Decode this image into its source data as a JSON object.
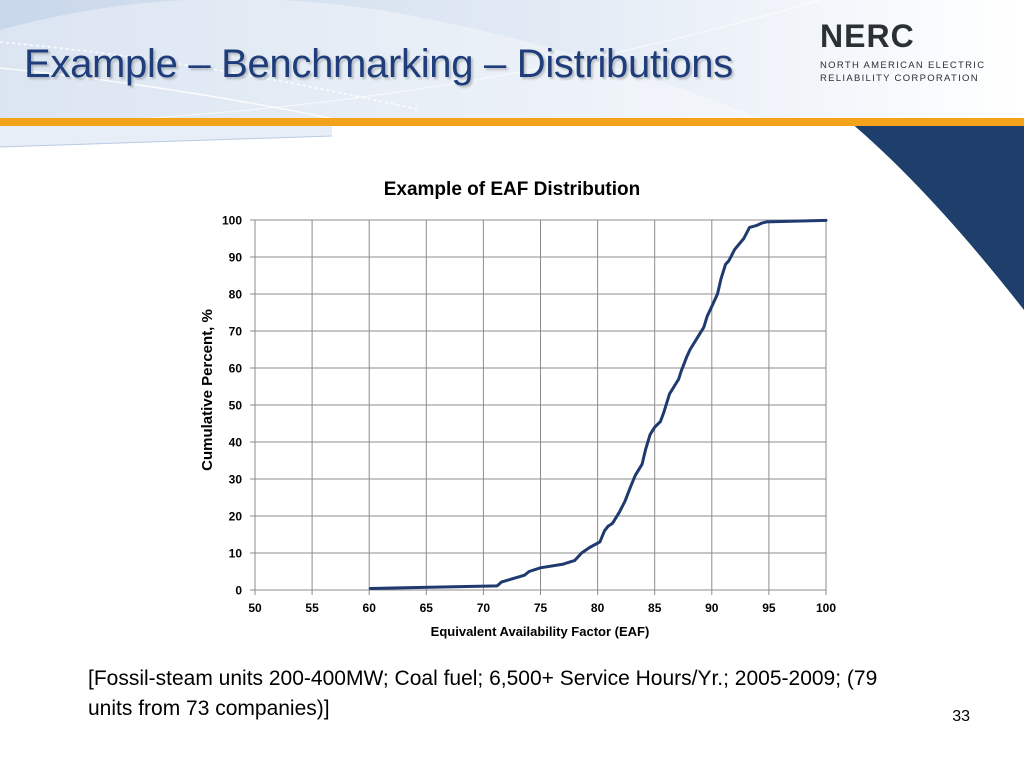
{
  "slide": {
    "title": "Example – Benchmarking – Distributions",
    "caption": "[Fossil-steam units 200-400MW; Coal fuel; 6,500+ Service Hours/Yr.; 2005-2009; (79 units from 73 companies)]",
    "page_number": "33",
    "colors": {
      "title": "#1f3d7a",
      "accent_orange": "#f5a21b",
      "accent_navy": "#1e3f6b"
    }
  },
  "logo": {
    "name": "NERC",
    "line1": "NORTH AMERICAN ELECTRIC",
    "line2": "RELIABILITY CORPORATION"
  },
  "chart_data": {
    "type": "line",
    "title": "Example of EAF Distribution",
    "xlabel": "Equivalent Availability Factor (EAF)",
    "ylabel": "Cumulative Percent, %",
    "xlim": [
      50,
      100
    ],
    "ylim": [
      0,
      100
    ],
    "xticks": [
      "50",
      "55",
      "60",
      "65",
      "70",
      "75",
      "80",
      "85",
      "90",
      "95",
      "100"
    ],
    "yticks": [
      "0",
      "10",
      "20",
      "30",
      "40",
      "50",
      "60",
      "70",
      "80",
      "90",
      "100"
    ],
    "grid": true,
    "line_color": "#1f3a6e",
    "series": [
      {
        "x": [
          60.1,
          71.2,
          71.6,
          72.5,
          73.6,
          74.0,
          75.0,
          77.0,
          78.0,
          78.6,
          79.3,
          80.2,
          80.6,
          80.9,
          81.3,
          81.9,
          82.4,
          82.9,
          83.3,
          83.9,
          84.2,
          84.6,
          85.0,
          85.5,
          85.8,
          86.3,
          86.7,
          87.1,
          87.3,
          87.8,
          88.1,
          88.5,
          88.9,
          89.3,
          89.6,
          89.9,
          90.5,
          90.8,
          91.2,
          91.5,
          92.0,
          92.4,
          92.8,
          93.3,
          93.9,
          94.4,
          94.8,
          100.0
        ],
        "y": [
          0.4,
          1.1,
          2.2,
          3.0,
          4.0,
          5.0,
          6.0,
          7.0,
          8.0,
          10.0,
          11.5,
          13.0,
          16.0,
          17.2,
          18.0,
          21.0,
          24.0,
          28.0,
          31.0,
          34.0,
          38.0,
          42.0,
          44.0,
          45.5,
          48.0,
          53.0,
          55.0,
          57.0,
          59.0,
          63.0,
          65.0,
          67.0,
          69.0,
          71.0,
          74.0,
          76.0,
          80.0,
          84.0,
          88.0,
          89.0,
          92.0,
          93.5,
          95.0,
          98.0,
          98.5,
          99.2,
          99.5,
          99.9
        ]
      }
    ]
  }
}
